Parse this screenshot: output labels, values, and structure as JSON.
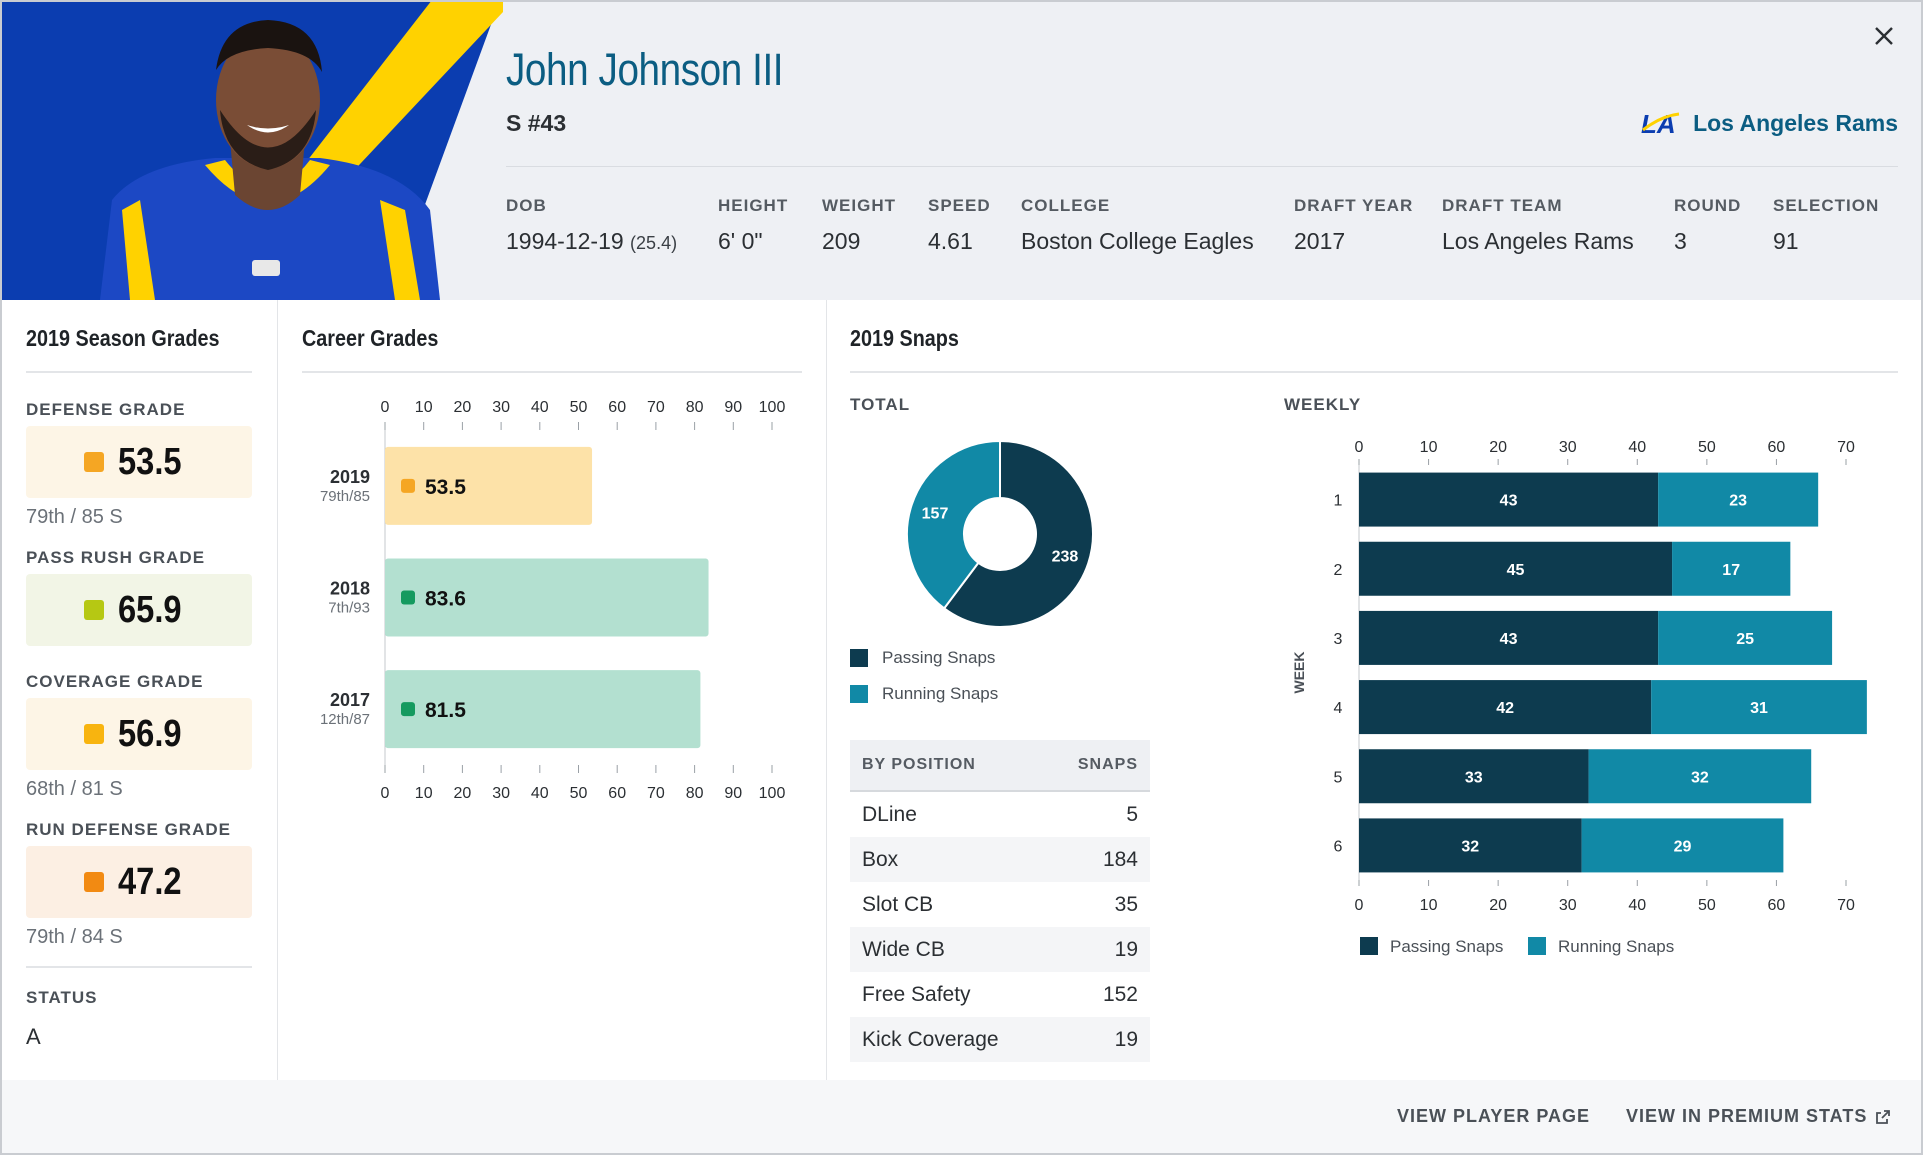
{
  "player": {
    "name": "John Johnson III",
    "position": "S #43",
    "team": "Los Angeles Rams",
    "team_logo_text": "LA"
  },
  "bio": [
    {
      "label": "DOB",
      "value": "1994-12-19",
      "extra": "(25.4)"
    },
    {
      "label": "HEIGHT",
      "value": "6' 0\""
    },
    {
      "label": "WEIGHT",
      "value": "209"
    },
    {
      "label": "SPEED",
      "value": "4.61"
    },
    {
      "label": "COLLEGE",
      "value": "Boston College Eagles"
    },
    {
      "label": "DRAFT YEAR",
      "value": "2017"
    },
    {
      "label": "DRAFT TEAM",
      "value": "Los Angeles Rams"
    },
    {
      "label": "ROUND",
      "value": "3"
    },
    {
      "label": "SELECTION",
      "value": "91"
    }
  ],
  "season": {
    "title": "2019 Season Grades",
    "grades": [
      {
        "label": "DEFENSE GRADE",
        "value": "53.5",
        "rank": "79th / 85 S",
        "color": "#f5a623",
        "bg": "#fdf5e6"
      },
      {
        "label": "PASS RUSH GRADE",
        "value": "65.9",
        "rank": "",
        "color": "#b6c813",
        "bg": "#f2f5e6"
      },
      {
        "label": "COVERAGE GRADE",
        "value": "56.9",
        "rank": "68th / 81 S",
        "color": "#f8b40f",
        "bg": "#fdf5e6"
      },
      {
        "label": "RUN DEFENSE GRADE",
        "value": "47.2",
        "rank": "79th / 84 S",
        "color": "#f28a12",
        "bg": "#fcefe3"
      }
    ],
    "status_label": "STATUS",
    "status_value": "A"
  },
  "career": {
    "title": "Career Grades"
  },
  "snaps": {
    "title": "2019 Snaps",
    "total_label": "TOTAL",
    "weekly_label": "WEEKLY",
    "legend_passing": "Passing Snaps",
    "legend_running": "Running Snaps",
    "table_head_left": "BY POSITION",
    "table_head_right": "SNAPS",
    "positions": [
      {
        "name": "DLine",
        "snaps": "5"
      },
      {
        "name": "Box",
        "snaps": "184"
      },
      {
        "name": "Slot CB",
        "snaps": "35"
      },
      {
        "name": "Wide CB",
        "snaps": "19"
      },
      {
        "name": "Free Safety",
        "snaps": "152"
      },
      {
        "name": "Kick Coverage",
        "snaps": "19"
      }
    ]
  },
  "footer": {
    "view_player": "VIEW PLAYER PAGE",
    "view_premium": "VIEW IN PREMIUM STATS"
  },
  "colors": {
    "passing": "#0d3b4f",
    "running": "#1189a6",
    "brand_blue": "#0b5d82"
  },
  "chart_data": [
    {
      "type": "bar",
      "orientation": "horizontal",
      "categories": [
        "2019",
        "2018",
        "2017"
      ],
      "sublabels": [
        "79th/85",
        "7th/93",
        "12th/87"
      ],
      "values": [
        53.5,
        83.6,
        81.5
      ],
      "value_labels": [
        "53.5",
        "83.6",
        "81.5"
      ],
      "bar_colors": [
        "#fde2a8",
        "#b3e0d0",
        "#b3e0d0"
      ],
      "dot_colors": [
        "#f5a623",
        "#159a5f",
        "#159a5f"
      ],
      "xlim": [
        0,
        100
      ],
      "xticks": [
        0,
        10,
        20,
        30,
        40,
        50,
        60,
        70,
        80,
        90,
        100
      ],
      "grid": false
    },
    {
      "type": "pie",
      "donut": true,
      "labels": [
        "Passing Snaps",
        "Running Snaps"
      ],
      "values": [
        238,
        157
      ],
      "colors": [
        "#0d3b4f",
        "#1189a6"
      ]
    },
    {
      "type": "bar",
      "orientation": "horizontal",
      "stacked": true,
      "ylabel": "WEEK",
      "categories": [
        "1",
        "2",
        "3",
        "4",
        "5",
        "6"
      ],
      "series": [
        {
          "name": "Passing Snaps",
          "values": [
            43,
            45,
            43,
            42,
            33,
            32
          ],
          "color": "#0d3b4f"
        },
        {
          "name": "Running Snaps",
          "values": [
            23,
            17,
            25,
            31,
            32,
            29
          ],
          "color": "#1189a6"
        }
      ],
      "xlim": [
        0,
        70
      ],
      "xticks": [
        0,
        10,
        20,
        30,
        40,
        50,
        60,
        70
      ],
      "legend": "bottom"
    }
  ]
}
